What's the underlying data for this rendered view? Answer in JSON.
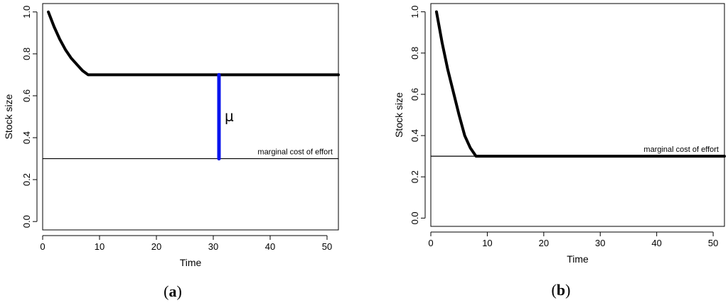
{
  "chart_data": [
    {
      "type": "line",
      "caption_open": "(",
      "caption_letter": "a",
      "caption_close": ")",
      "xlabel": "Time",
      "ylabel": "Stock size",
      "xlim": [
        0,
        52
      ],
      "ylim": [
        -0.04,
        1.04
      ],
      "xticks": [
        0,
        10,
        20,
        30,
        40,
        50
      ],
      "yticks": [
        0.0,
        0.2,
        0.4,
        0.6,
        0.8,
        1.0
      ],
      "ytick_labels": [
        "0.0",
        "0.2",
        "0.4",
        "0.6",
        "0.8",
        "1.0"
      ],
      "grid": false,
      "series": [
        {
          "x": [
            1,
            2,
            3,
            4,
            5,
            6,
            7,
            8,
            52
          ],
          "y": [
            1.0,
            0.93,
            0.87,
            0.82,
            0.78,
            0.75,
            0.72,
            0.7,
            0.7
          ],
          "color": "#000000"
        }
      ],
      "hline": {
        "y": 0.3,
        "label": "marginal cost of effort",
        "color": "#000000"
      },
      "vsegment": {
        "x": 31,
        "y0": 0.3,
        "y1": 0.7,
        "label": "μ",
        "color": "#0a14ee"
      }
    },
    {
      "type": "line",
      "caption_open": "(",
      "caption_letter": "b",
      "caption_close": ")",
      "xlabel": "Time",
      "ylabel": "Stock size",
      "xlim": [
        0,
        52
      ],
      "ylim": [
        -0.04,
        1.04
      ],
      "xticks": [
        0,
        10,
        20,
        30,
        40,
        50
      ],
      "yticks": [
        0.0,
        0.2,
        0.4,
        0.6,
        0.8,
        1.0
      ],
      "ytick_labels": [
        "0.0",
        "0.2",
        "0.4",
        "0.6",
        "0.8",
        "1.0"
      ],
      "grid": false,
      "series": [
        {
          "x": [
            1,
            2,
            3,
            4,
            5,
            6,
            7,
            8,
            52
          ],
          "y": [
            1.0,
            0.85,
            0.72,
            0.61,
            0.5,
            0.4,
            0.34,
            0.3,
            0.3
          ],
          "color": "#000000"
        }
      ],
      "hline": {
        "y": 0.3,
        "label": "marginal cost of effort",
        "color": "#000000"
      }
    }
  ]
}
